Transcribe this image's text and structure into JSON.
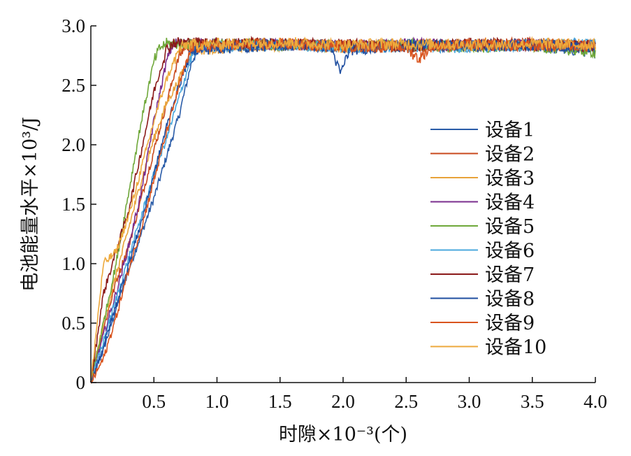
{
  "chart_data": {
    "type": "line",
    "title": "",
    "xlabel": "时隙×10⁻³(个)",
    "ylabel": "电池能量水平×10³/J",
    "xlim": [
      0,
      4.0
    ],
    "ylim": [
      0,
      3.0
    ],
    "x_ticks": [
      "0.5",
      "1.0",
      "1.5",
      "2.0",
      "2.5",
      "3.0",
      "3.5",
      "4.0"
    ],
    "y_ticks": [
      "0",
      "0.5",
      "1.0",
      "1.5",
      "2.0",
      "2.5",
      "3.0"
    ],
    "grid": false,
    "legend_position": "right",
    "series": [
      {
        "name": "设备1",
        "color": "#2a5ca8",
        "points": [
          [
            0,
            0
          ],
          [
            0.1,
            0.28
          ],
          [
            0.2,
            0.62
          ],
          [
            0.3,
            0.95
          ],
          [
            0.4,
            1.25
          ],
          [
            0.5,
            1.55
          ],
          [
            0.6,
            1.9
          ],
          [
            0.7,
            2.25
          ],
          [
            0.8,
            2.7
          ],
          [
            0.85,
            2.82
          ],
          [
            1.5,
            2.85
          ],
          [
            2.0,
            2.82
          ],
          [
            2.5,
            2.83
          ],
          [
            3.0,
            2.84
          ],
          [
            3.5,
            2.83
          ],
          [
            4.0,
            2.78
          ]
        ]
      },
      {
        "name": "设备2",
        "color": "#c8491d",
        "points": [
          [
            0,
            0
          ],
          [
            0.1,
            0.45
          ],
          [
            0.2,
            0.85
          ],
          [
            0.3,
            1.15
          ],
          [
            0.4,
            1.55
          ],
          [
            0.5,
            1.95
          ],
          [
            0.6,
            2.35
          ],
          [
            0.7,
            2.75
          ],
          [
            0.75,
            2.83
          ],
          [
            1.5,
            2.85
          ],
          [
            2.0,
            2.84
          ],
          [
            2.5,
            2.83
          ],
          [
            3.0,
            2.84
          ],
          [
            3.5,
            2.85
          ],
          [
            4.0,
            2.83
          ]
        ]
      },
      {
        "name": "设备3",
        "color": "#e8a23a",
        "points": [
          [
            0,
            0
          ],
          [
            0.1,
            0.5
          ],
          [
            0.2,
            0.9
          ],
          [
            0.3,
            1.3
          ],
          [
            0.4,
            1.7
          ],
          [
            0.5,
            2.05
          ],
          [
            0.6,
            2.35
          ],
          [
            0.7,
            2.55
          ],
          [
            0.8,
            2.8
          ],
          [
            1.5,
            2.84
          ],
          [
            2.0,
            2.82
          ],
          [
            2.5,
            2.84
          ],
          [
            3.0,
            2.83
          ],
          [
            3.5,
            2.84
          ],
          [
            4.0,
            2.84
          ]
        ]
      },
      {
        "name": "设备4",
        "color": "#7a2e8e",
        "points": [
          [
            0,
            0
          ],
          [
            0.1,
            0.4
          ],
          [
            0.2,
            0.75
          ],
          [
            0.3,
            1.15
          ],
          [
            0.4,
            1.6
          ],
          [
            0.5,
            2.2
          ],
          [
            0.6,
            2.7
          ],
          [
            0.65,
            2.85
          ],
          [
            1.5,
            2.84
          ],
          [
            2.0,
            2.83
          ],
          [
            2.5,
            2.85
          ],
          [
            3.0,
            2.83
          ],
          [
            3.5,
            2.84
          ],
          [
            4.0,
            2.82
          ]
        ]
      },
      {
        "name": "设备5",
        "color": "#6fa83a",
        "points": [
          [
            0,
            0
          ],
          [
            0.1,
            0.5
          ],
          [
            0.2,
            1.0
          ],
          [
            0.3,
            1.6
          ],
          [
            0.4,
            2.2
          ],
          [
            0.5,
            2.7
          ],
          [
            0.55,
            2.82
          ],
          [
            0.6,
            2.85
          ],
          [
            1.5,
            2.84
          ],
          [
            2.0,
            2.83
          ],
          [
            2.5,
            2.84
          ],
          [
            3.0,
            2.82
          ],
          [
            3.5,
            2.83
          ],
          [
            4.0,
            2.78
          ]
        ]
      },
      {
        "name": "设备6",
        "color": "#4aa8dd",
        "points": [
          [
            0,
            0
          ],
          [
            0.1,
            0.35
          ],
          [
            0.2,
            0.7
          ],
          [
            0.3,
            1.05
          ],
          [
            0.4,
            1.4
          ],
          [
            0.5,
            1.75
          ],
          [
            0.6,
            2.05
          ],
          [
            0.7,
            2.4
          ],
          [
            0.8,
            2.75
          ],
          [
            0.85,
            2.82
          ],
          [
            1.5,
            2.84
          ],
          [
            2.0,
            2.82
          ],
          [
            2.5,
            2.83
          ],
          [
            3.0,
            2.82
          ],
          [
            3.5,
            2.84
          ],
          [
            4.0,
            2.85
          ]
        ]
      },
      {
        "name": "设备7",
        "color": "#8b1a1a",
        "points": [
          [
            0,
            0
          ],
          [
            0.1,
            0.75
          ],
          [
            0.2,
            1.1
          ],
          [
            0.3,
            1.45
          ],
          [
            0.4,
            1.95
          ],
          [
            0.5,
            2.45
          ],
          [
            0.6,
            2.8
          ],
          [
            0.65,
            2.86
          ],
          [
            1.5,
            2.85
          ],
          [
            2.0,
            2.84
          ],
          [
            2.5,
            2.83
          ],
          [
            3.0,
            2.85
          ],
          [
            3.5,
            2.84
          ],
          [
            4.0,
            2.83
          ]
        ]
      },
      {
        "name": "设备8",
        "color": "#1f4ea0",
        "points": [
          [
            0,
            0
          ],
          [
            0.1,
            0.3
          ],
          [
            0.2,
            0.65
          ],
          [
            0.3,
            1.0
          ],
          [
            0.4,
            1.35
          ],
          [
            0.5,
            1.75
          ],
          [
            0.6,
            2.15
          ],
          [
            0.7,
            2.5
          ],
          [
            0.8,
            2.8
          ],
          [
            1.5,
            2.84
          ],
          [
            1.9,
            2.83
          ],
          [
            1.98,
            2.6
          ],
          [
            2.05,
            2.8
          ],
          [
            2.5,
            2.84
          ],
          [
            3.0,
            2.83
          ],
          [
            3.5,
            2.84
          ],
          [
            4.0,
            2.82
          ]
        ]
      },
      {
        "name": "设备9",
        "color": "#d9541e",
        "points": [
          [
            0,
            0
          ],
          [
            0.1,
            0.2
          ],
          [
            0.2,
            0.55
          ],
          [
            0.3,
            0.95
          ],
          [
            0.4,
            1.3
          ],
          [
            0.5,
            1.7
          ],
          [
            0.6,
            2.1
          ],
          [
            0.7,
            2.5
          ],
          [
            0.8,
            2.82
          ],
          [
            1.5,
            2.85
          ],
          [
            2.0,
            2.83
          ],
          [
            2.5,
            2.82
          ],
          [
            2.6,
            2.72
          ],
          [
            2.7,
            2.83
          ],
          [
            3.0,
            2.84
          ],
          [
            3.5,
            2.83
          ],
          [
            4.0,
            2.84
          ]
        ]
      },
      {
        "name": "设备10",
        "color": "#eda93c",
        "points": [
          [
            0,
            0
          ],
          [
            0.1,
            1.0
          ],
          [
            0.2,
            1.1
          ],
          [
            0.3,
            1.4
          ],
          [
            0.4,
            1.8
          ],
          [
            0.5,
            2.2
          ],
          [
            0.6,
            2.55
          ],
          [
            0.7,
            2.8
          ],
          [
            0.75,
            2.84
          ],
          [
            1.5,
            2.86
          ],
          [
            2.0,
            2.84
          ],
          [
            2.5,
            2.85
          ],
          [
            3.0,
            2.84
          ],
          [
            3.5,
            2.85
          ],
          [
            4.0,
            2.84
          ]
        ]
      }
    ]
  }
}
